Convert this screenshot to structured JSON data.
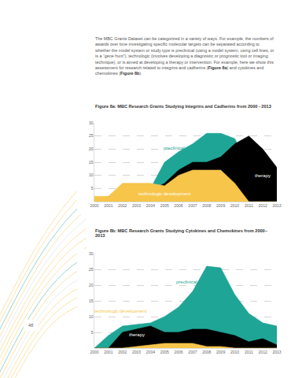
{
  "page": {
    "paragraph": [
      {
        "text": "The MBC Grants Dataset can be categorized in a variety of ways. For example, the numbers of awards over time investigating specific molecular targets can be separated according to whether the model system or study type is preclinical (using a model system, using cell lines, or is a “gene hunt”), technologic (involves developing a diagnostic or prognostic tool or imaging technique), or is aimed at developing a therapy or intervention. For example, here we show this assessment for research related to integrins and cadherins (",
        "bold": false
      },
      {
        "text": "Figure 8a",
        "bold": true
      },
      {
        "text": ") and cytokines and chemokines (",
        "bold": false
      },
      {
        "text": "Figure 8b",
        "bold": true
      },
      {
        "text": ").",
        "bold": false
      }
    ],
    "page_number": "48"
  },
  "chart_data": [
    {
      "type": "area",
      "title": "Figure 8a: MBC Research Grants Studying Integrins and Cadherins from 2000 - 2013",
      "x": [
        2000,
        2001,
        2002,
        2003,
        2004,
        2005,
        2006,
        2007,
        2008,
        2009,
        2010,
        2011,
        2012,
        2013
      ],
      "xlim": [
        2000,
        2013
      ],
      "xticks": [
        2000,
        2001,
        2002,
        2003,
        2004,
        2005,
        2006,
        2007,
        2008,
        2009,
        2010,
        2011,
        2012,
        2013
      ],
      "ylim": [
        0,
        30
      ],
      "yticks": [
        5,
        10,
        15,
        20,
        25,
        30
      ],
      "grid": true,
      "series": [
        {
          "name": "preclinical research",
          "color": "#1fa596",
          "values": [
            0,
            2,
            3,
            4,
            5,
            15,
            19,
            22,
            26,
            26,
            24,
            14,
            10,
            4
          ]
        },
        {
          "name": "therapy",
          "color": "#000000",
          "values": [
            0,
            1,
            2,
            3,
            4,
            7,
            12,
            15,
            15,
            17,
            22,
            25,
            20,
            13
          ]
        },
        {
          "name": "technologic development",
          "color": "#f6c54a",
          "values": [
            2,
            2,
            7,
            7,
            7,
            6,
            10,
            12,
            12,
            12,
            7,
            0,
            0,
            0
          ]
        }
      ]
    },
    {
      "type": "area",
      "title": "Figure 8b: MBC Research Grants Studying Cytokines and Chemokines from 2000– 2013",
      "x": [
        2000,
        2001,
        2002,
        2003,
        2004,
        2005,
        2006,
        2007,
        2008,
        2009,
        2010,
        2011,
        2012,
        2013
      ],
      "xlim": [
        2000,
        2013
      ],
      "xticks": [
        2000,
        2001,
        2002,
        2003,
        2004,
        2005,
        2006,
        2007,
        2008,
        2009,
        2010,
        2011,
        2012,
        2013
      ],
      "ylim": [
        0,
        30
      ],
      "yticks": [
        5,
        10,
        15,
        20,
        25,
        30
      ],
      "grid": true,
      "series": [
        {
          "name": "preclinical research",
          "color": "#1fa596",
          "values": [
            0,
            4,
            7,
            7.5,
            8,
            10,
            13,
            18,
            26,
            25.5,
            17,
            11,
            8,
            7
          ]
        },
        {
          "name": "therapy",
          "color": "#000000",
          "values": [
            0,
            0,
            5,
            6,
            7,
            5,
            5,
            6,
            6,
            5,
            4,
            2,
            3,
            1
          ]
        },
        {
          "name": "technologic development",
          "color": "#f6c54a",
          "values": [
            0,
            0,
            0,
            0.5,
            1,
            1.5,
            1.5,
            1.5,
            0.5,
            0.5,
            0,
            0,
            0,
            0
          ]
        }
      ]
    }
  ]
}
